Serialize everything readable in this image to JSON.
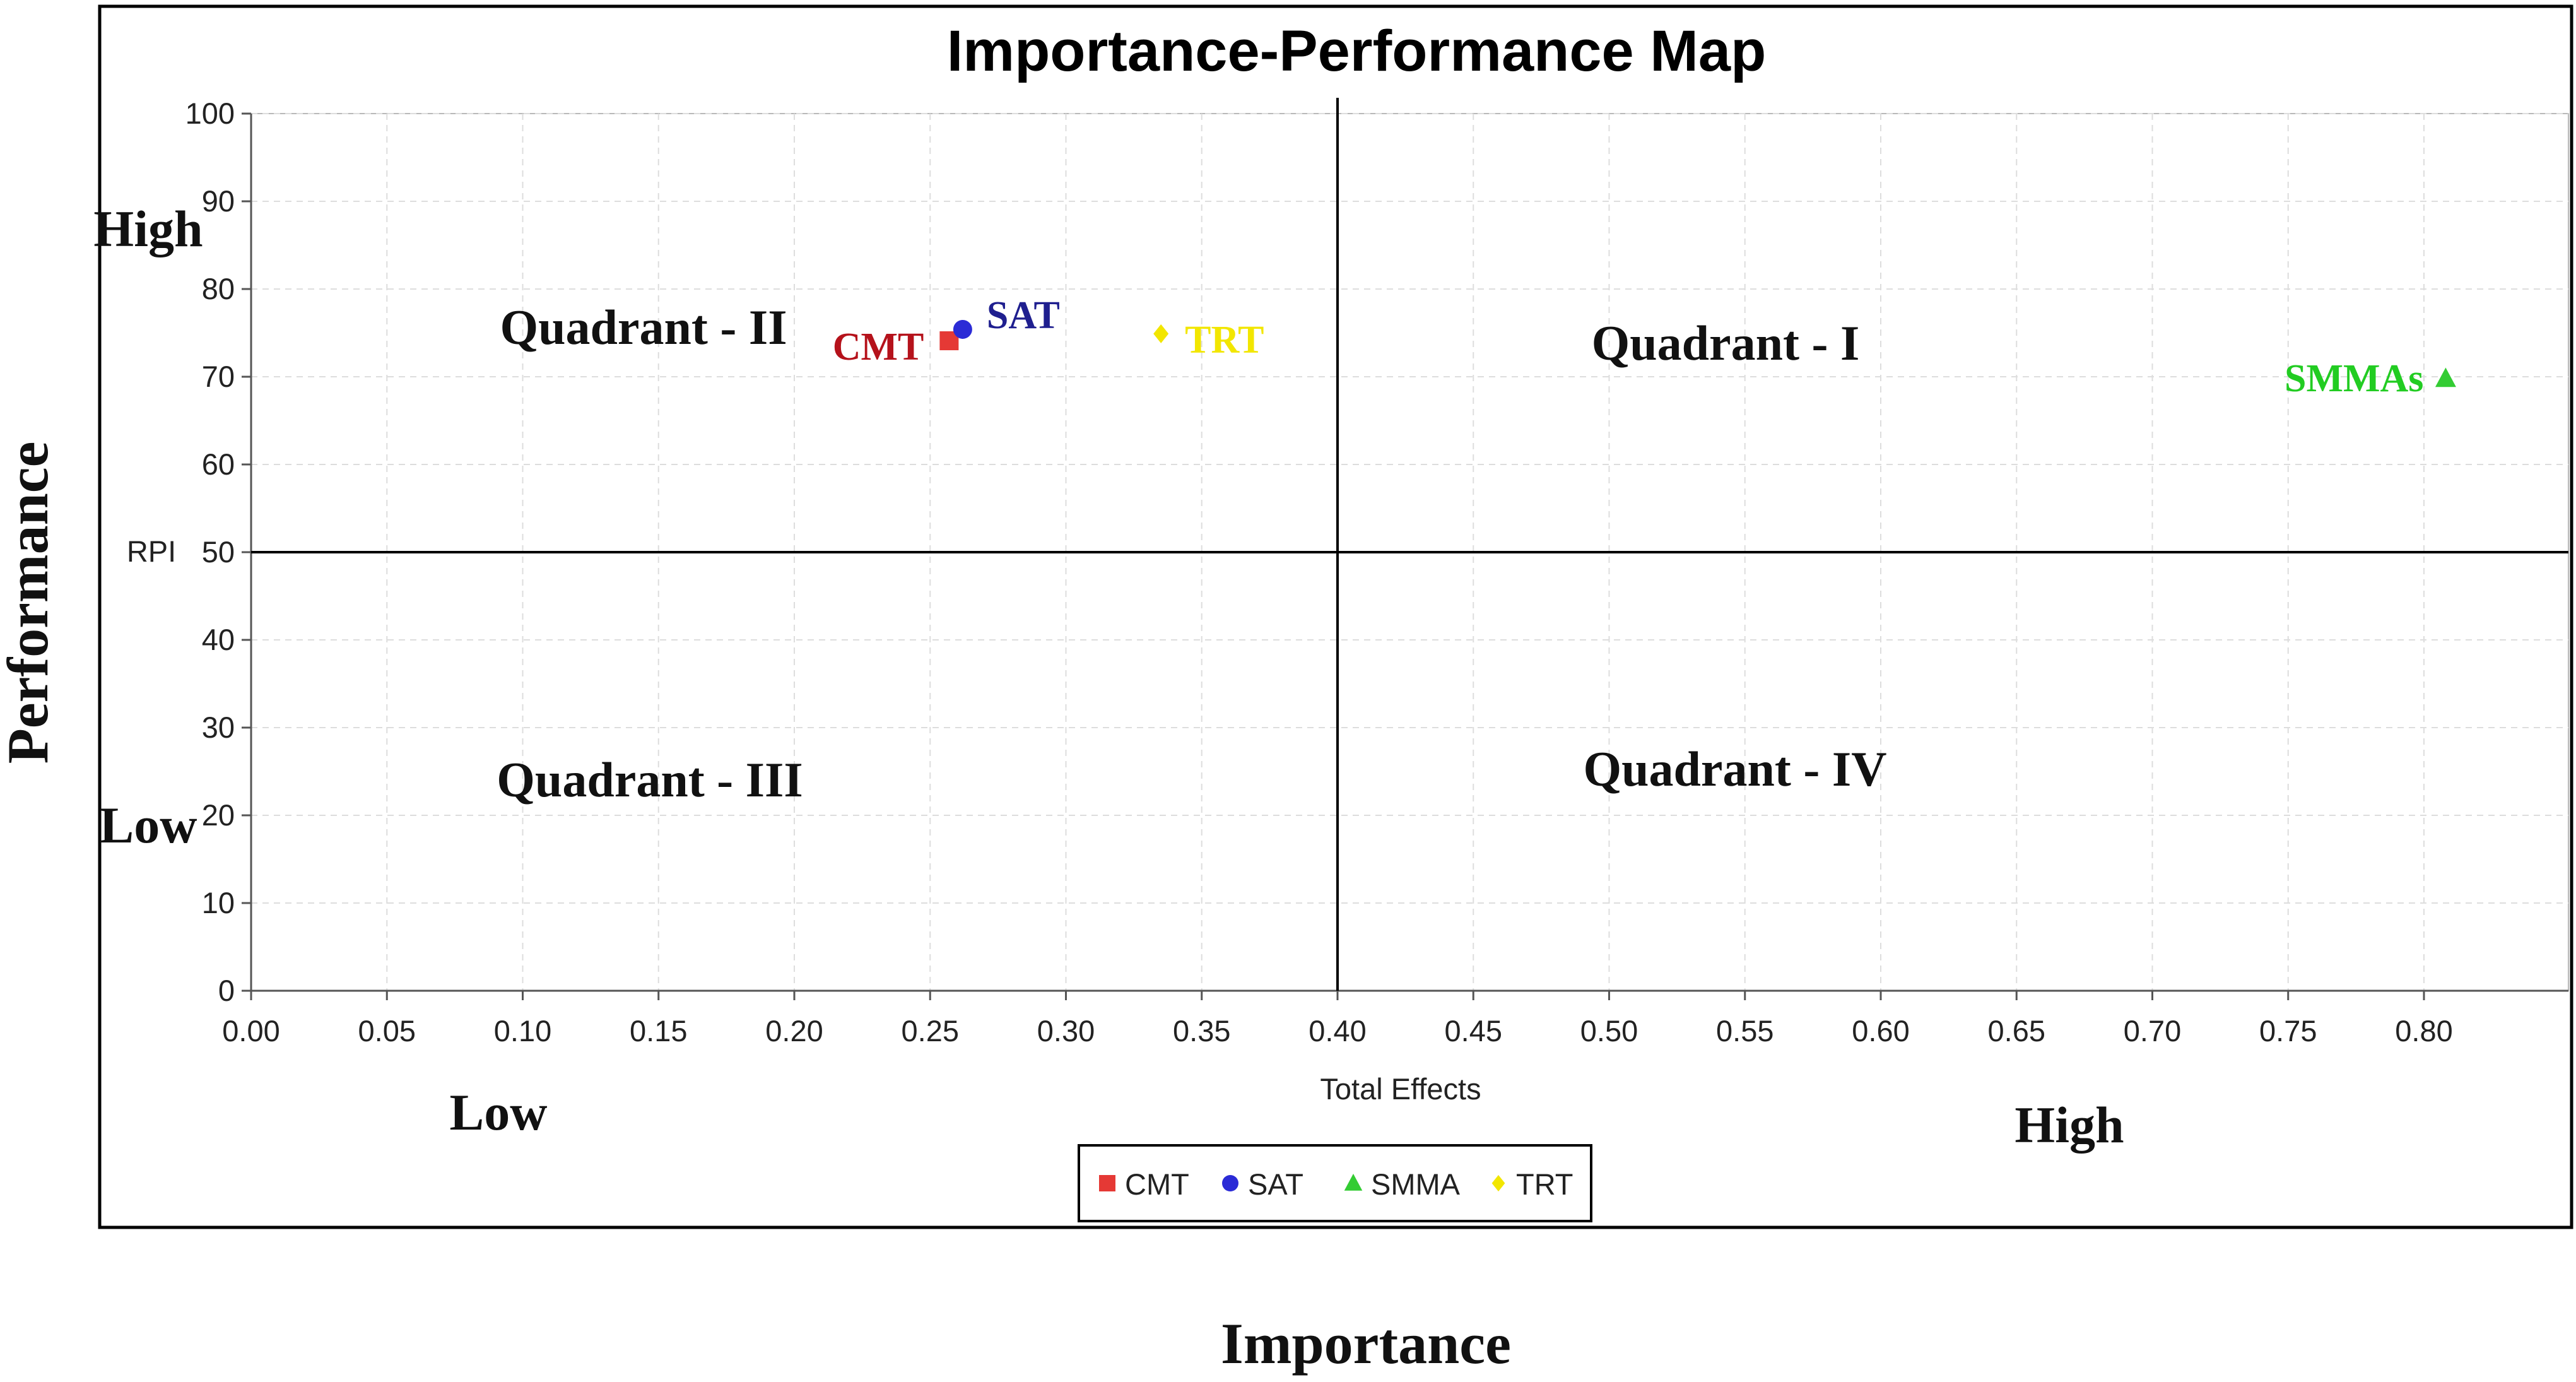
{
  "chart_data": {
    "type": "scatter",
    "title": "Importance-Performance Map",
    "xlabel": "Total Effects",
    "ylabel": "Performance",
    "outer_xlabel": "Importance",
    "y_reference_label": "RPI",
    "xlim": [
      0,
      0.85
    ],
    "ylim": [
      0,
      100
    ],
    "x_ticks": [
      "0.00",
      "0.05",
      "0.10",
      "0.15",
      "0.20",
      "0.25",
      "0.30",
      "0.35",
      "0.40",
      "0.45",
      "0.50",
      "0.55",
      "0.60",
      "0.65",
      "0.70",
      "0.75",
      "0.80"
    ],
    "y_ticks": [
      "0",
      "10",
      "20",
      "30",
      "40",
      "50",
      "60",
      "70",
      "80",
      "90",
      "100"
    ],
    "grid": true,
    "divider": {
      "x": 0.4,
      "y": 50
    },
    "quadrants": {
      "q1": "Quadrant - I",
      "q2": "Quadrant - II",
      "q3": "Quadrant - III",
      "q4": "Quadrant - IV"
    },
    "axis_extremes": {
      "y_high": "High",
      "y_low": "Low",
      "x_low": "Low",
      "x_high": "High"
    },
    "series": [
      {
        "name": "CMT",
        "x": 0.257,
        "y": 74.1,
        "label": "CMT",
        "color": "#e53935",
        "marker": "square"
      },
      {
        "name": "SAT",
        "x": 0.262,
        "y": 75.4,
        "label": "SAT",
        "color": "#2b2bd6",
        "marker": "circle"
      },
      {
        "name": "SMMA",
        "x": 0.808,
        "y": 69.8,
        "label": "SMMAs",
        "color": "#33cc33",
        "marker": "triangle"
      },
      {
        "name": "TRT",
        "x": 0.335,
        "y": 74.9,
        "label": "TRT",
        "color": "#f2e600",
        "marker": "diamond"
      }
    ],
    "legend_position": "bottom-center"
  }
}
